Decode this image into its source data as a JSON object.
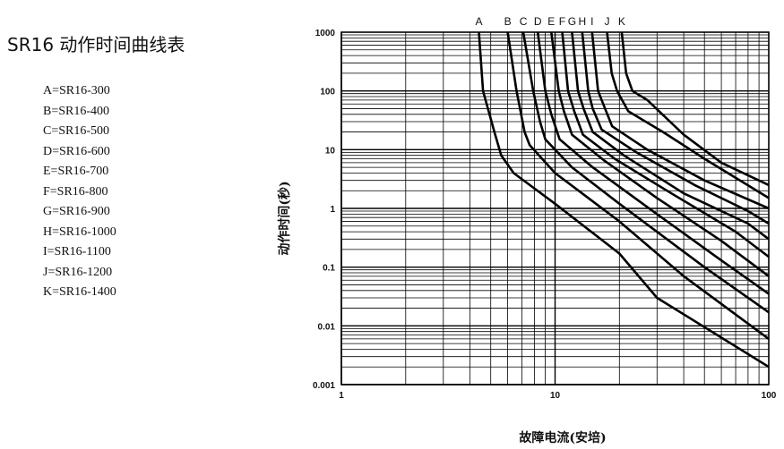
{
  "title": "SR16 动作时间曲线表",
  "legend": [
    "A=SR16-300",
    "B=SR16-400",
    "C=SR16-500",
    "D=SR16-600",
    "E=SR16-700",
    "F=SR16-800",
    "G=SR16-900",
    "H=SR16-1000",
    "I=SR16-1100",
    "J=SR16-1200",
    "K=SR16-1400"
  ],
  "chart_data": {
    "type": "line",
    "xlabel": "故障电流(安培)",
    "ylabel": "动作时间(秒)",
    "x_scale": "log",
    "y_scale": "log",
    "xlim": [
      1,
      100
    ],
    "ylim": [
      0.001,
      1000
    ],
    "x_tick_labels": [
      "1",
      "10",
      "100"
    ],
    "y_tick_labels": [
      "1000",
      "100",
      "10",
      "1",
      "0.1",
      "0.01",
      "0.001"
    ],
    "grid": true,
    "series": [
      {
        "name": "A",
        "points": [
          [
            4.4,
            1000
          ],
          [
            4.6,
            100
          ],
          [
            5.2,
            20
          ],
          [
            5.6,
            8
          ],
          [
            6.4,
            4
          ],
          [
            10,
            1.2
          ],
          [
            20,
            0.17
          ],
          [
            30,
            0.03
          ],
          [
            100,
            0.002
          ]
        ]
      },
      {
        "name": "B",
        "points": [
          [
            6.0,
            1000
          ],
          [
            6.6,
            100
          ],
          [
            7.2,
            20
          ],
          [
            7.6,
            12
          ],
          [
            10,
            4
          ],
          [
            20,
            0.6
          ],
          [
            40,
            0.07
          ],
          [
            100,
            0.006
          ]
        ]
      },
      {
        "name": "C",
        "points": [
          [
            7.1,
            1000
          ],
          [
            7.9,
            100
          ],
          [
            8.5,
            30
          ],
          [
            9.0,
            15
          ],
          [
            12,
            5
          ],
          [
            20,
            1.2
          ],
          [
            50,
            0.1
          ],
          [
            100,
            0.017
          ]
        ]
      },
      {
        "name": "D",
        "points": [
          [
            8.3,
            1000
          ],
          [
            9.0,
            100
          ],
          [
            9.6,
            40
          ],
          [
            10.5,
            15
          ],
          [
            15,
            5
          ],
          [
            30,
            0.8
          ],
          [
            60,
            0.13
          ],
          [
            100,
            0.035
          ]
        ]
      },
      {
        "name": "E",
        "points": [
          [
            9.6,
            1000
          ],
          [
            10.4,
            100
          ],
          [
            11,
            45
          ],
          [
            12,
            18
          ],
          [
            17,
            6.5
          ],
          [
            30,
            1.5
          ],
          [
            60,
            0.28
          ],
          [
            100,
            0.07
          ]
        ]
      },
      {
        "name": "F",
        "points": [
          [
            10.8,
            1000
          ],
          [
            11.5,
            100
          ],
          [
            12.3,
            45
          ],
          [
            13.5,
            18
          ],
          [
            19,
            7
          ],
          [
            35,
            1.8
          ],
          [
            70,
            0.4
          ],
          [
            100,
            0.15
          ]
        ]
      },
      {
        "name": "G",
        "points": [
          [
            12.0,
            1000
          ],
          [
            12.8,
            100
          ],
          [
            13.6,
            50
          ],
          [
            15,
            20
          ],
          [
            21,
            8
          ],
          [
            40,
            1.8
          ],
          [
            80,
            0.55
          ],
          [
            100,
            0.3
          ]
        ]
      },
      {
        "name": "H",
        "points": [
          [
            13.4,
            1000
          ],
          [
            14.3,
            100
          ],
          [
            15,
            50
          ],
          [
            16.5,
            22
          ],
          [
            24,
            9
          ],
          [
            45,
            2.5
          ],
          [
            80,
            0.9
          ],
          [
            100,
            0.55
          ]
        ]
      },
      {
        "name": "I",
        "points": [
          [
            14.9,
            1000
          ],
          [
            15.9,
            100
          ],
          [
            16.8,
            60
          ],
          [
            18.5,
            25
          ],
          [
            27,
            10
          ],
          [
            50,
            3
          ],
          [
            100,
            1
          ]
        ]
      },
      {
        "name": "J",
        "points": [
          [
            17.5,
            1000
          ],
          [
            18.4,
            200
          ],
          [
            19.5,
            100
          ],
          [
            22,
            45
          ],
          [
            32,
            20
          ],
          [
            50,
            7
          ],
          [
            100,
            1.5
          ]
        ]
      },
      {
        "name": "K",
        "points": [
          [
            20.5,
            1000
          ],
          [
            21.5,
            200
          ],
          [
            23,
            100
          ],
          [
            27,
            70
          ],
          [
            40,
            18
          ],
          [
            60,
            6
          ],
          [
            100,
            2.5
          ]
        ]
      }
    ]
  }
}
